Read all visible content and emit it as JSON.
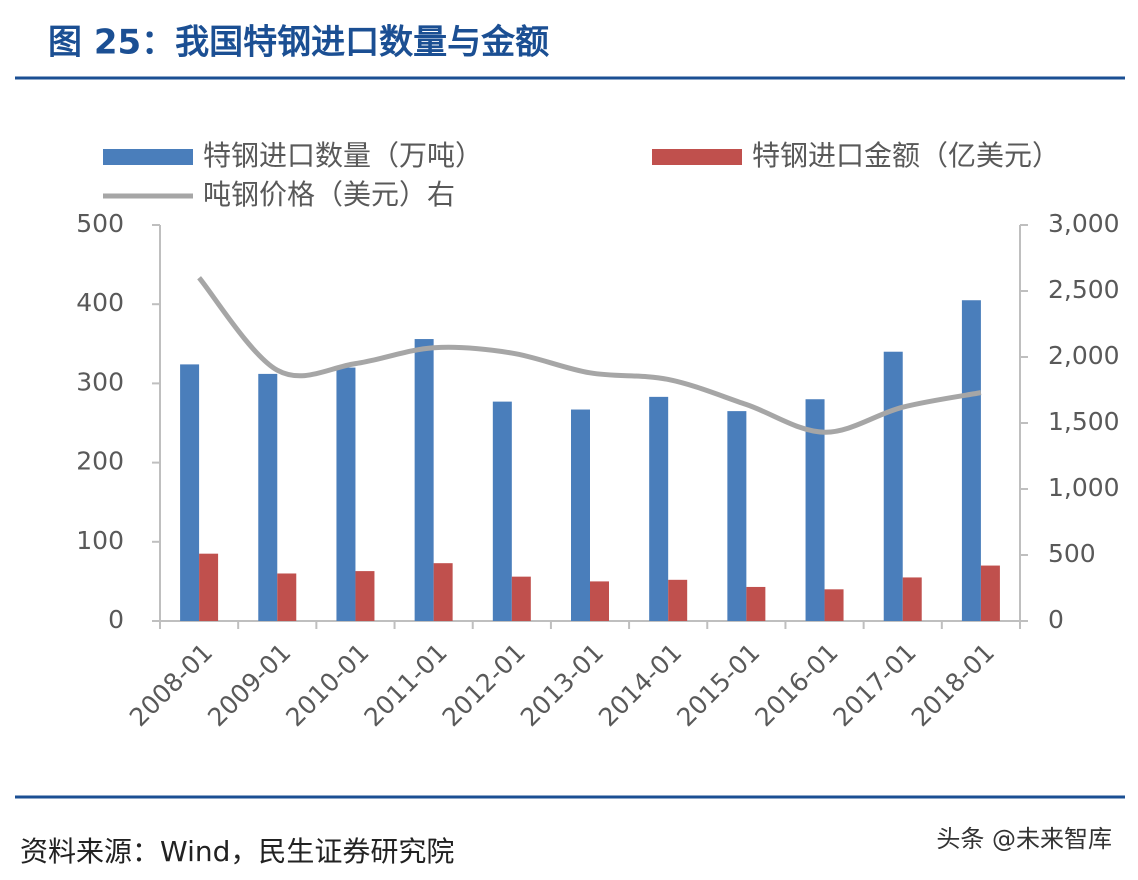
{
  "chart_data": {
    "type": "bar-line",
    "title": "图 25：我国特钢进口数量与金额",
    "categories": [
      "2008-01",
      "2009-01",
      "2010-01",
      "2011-01",
      "2012-01",
      "2013-01",
      "2014-01",
      "2015-01",
      "2016-01",
      "2017-01",
      "2018-01"
    ],
    "series": [
      {
        "name": "特钢进口数量（万吨）",
        "color": "#4a7ebb",
        "type": "bar",
        "values": [
          324,
          312,
          320,
          356,
          277,
          267,
          283,
          265,
          280,
          340,
          405
        ]
      },
      {
        "name": "特钢进口金额（亿美元）",
        "color": "#c0504d",
        "type": "bar",
        "values": [
          85,
          60,
          63,
          73,
          56,
          50,
          52,
          43,
          40,
          55,
          70
        ]
      },
      {
        "name": "吨钢价格（美元）右",
        "color": "#a6a6a6",
        "type": "line",
        "axis": "y2",
        "values": [
          2600,
          1900,
          1950,
          2070,
          2030,
          1880,
          1830,
          1640,
          1430,
          1620,
          1730
        ]
      }
    ],
    "ylim": [
      0,
      500
    ],
    "yticks": [
      0,
      100,
      200,
      300,
      400,
      500
    ],
    "y2lim": [
      0,
      3000
    ],
    "y2ticks": [
      0,
      500,
      {
        "value": 1000,
        "label": "1,000"
      },
      {
        "value": 1500,
        "label": "1,500"
      },
      {
        "value": 2000,
        "label": "2,000"
      },
      {
        "value": 2500,
        "label": "2,500"
      },
      {
        "value": 3000,
        "label": "3,000"
      }
    ],
    "grid": false
  },
  "source": "资料来源：Wind，民生证券研究院",
  "watermark": "头条 @未来智库"
}
